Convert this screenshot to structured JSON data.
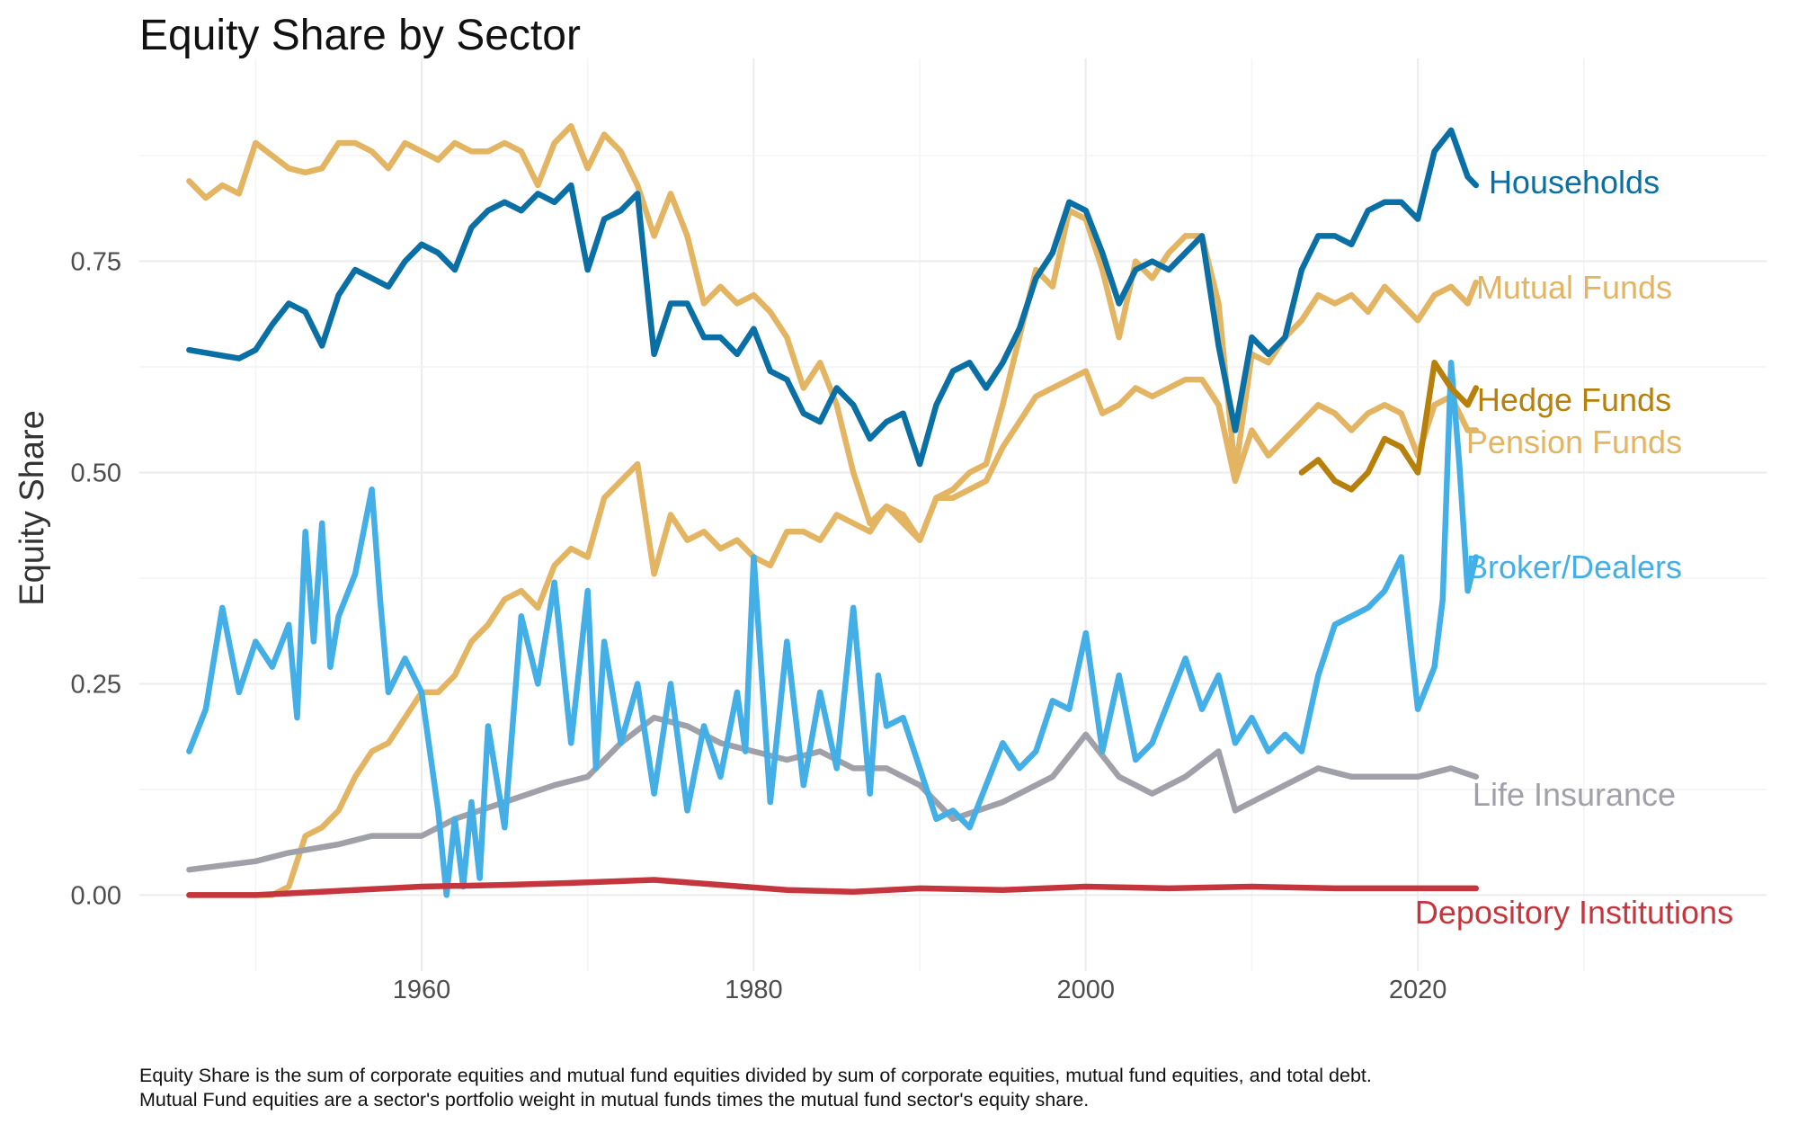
{
  "chart_data": {
    "type": "line",
    "title": "Equity Share by Sector",
    "xlabel": "",
    "ylabel": "Equity Share",
    "xlim": [
      1943,
      2041
    ],
    "ylim": [
      -0.09,
      0.99
    ],
    "x_ticks": [
      1960,
      1980,
      2000,
      2020
    ],
    "y_ticks": [
      0.0,
      0.25,
      0.5,
      0.75
    ],
    "y_tick_labels": [
      "0.00",
      "0.25",
      "0.50",
      "0.75"
    ],
    "grid": true,
    "legend": "direct labels at right",
    "notes": [
      "Equity Share is the sum of corporate equities and mutual fund equities divided by sum of corporate equities, mutual fund equities, and total debt.",
      "Mutual Fund equities are a sector's portfolio weight in mutual funds times the mutual fund sector's equity share."
    ],
    "series": [
      {
        "name": "Households",
        "color": "#0a6fa5",
        "x": [
          1946,
          1949,
          1950,
          1951,
          1952,
          1953,
          1954,
          1955,
          1956,
          1957,
          1958,
          1959,
          1960,
          1961,
          1962,
          1963,
          1964,
          1965,
          1966,
          1967,
          1968,
          1969,
          1970,
          1971,
          1972,
          1973,
          1974,
          1975,
          1976,
          1977,
          1978,
          1979,
          1980,
          1981,
          1982,
          1983,
          1984,
          1985,
          1986,
          1987,
          1988,
          1989,
          1990,
          1991,
          1992,
          1993,
          1994,
          1995,
          1996,
          1997,
          1998,
          1999,
          2000,
          2001,
          2002,
          2003,
          2004,
          2005,
          2006,
          2007,
          2008,
          2009,
          2010,
          2011,
          2012,
          2013,
          2014,
          2015,
          2016,
          2017,
          2018,
          2019,
          2020,
          2021,
          2022,
          2023,
          2023.5
        ],
        "y": [
          0.645,
          0.635,
          0.645,
          0.675,
          0.7,
          0.69,
          0.65,
          0.71,
          0.74,
          0.73,
          0.72,
          0.75,
          0.77,
          0.76,
          0.74,
          0.79,
          0.81,
          0.82,
          0.81,
          0.83,
          0.82,
          0.84,
          0.74,
          0.8,
          0.81,
          0.83,
          0.64,
          0.7,
          0.7,
          0.66,
          0.66,
          0.64,
          0.67,
          0.62,
          0.61,
          0.57,
          0.56,
          0.6,
          0.58,
          0.54,
          0.56,
          0.57,
          0.51,
          0.58,
          0.62,
          0.63,
          0.6,
          0.63,
          0.67,
          0.73,
          0.76,
          0.82,
          0.81,
          0.76,
          0.7,
          0.74,
          0.75,
          0.74,
          0.76,
          0.78,
          0.65,
          0.55,
          0.66,
          0.64,
          0.66,
          0.74,
          0.78,
          0.78,
          0.77,
          0.81,
          0.82,
          0.82,
          0.8,
          0.88,
          0.905,
          0.85,
          0.84
        ]
      },
      {
        "name": "Mutual Funds",
        "color": "#e3b462",
        "x": [
          1946,
          1947,
          1948,
          1949,
          1950,
          1951,
          1952,
          1953,
          1954,
          1955,
          1956,
          1957,
          1958,
          1959,
          1960,
          1961,
          1962,
          1963,
          1964,
          1965,
          1966,
          1967,
          1968,
          1969,
          1970,
          1971,
          1972,
          1973,
          1974,
          1975,
          1976,
          1977,
          1978,
          1979,
          1980,
          1981,
          1982,
          1983,
          1984,
          1985,
          1986,
          1987,
          1988,
          1989,
          1990,
          1991,
          1992,
          1993,
          1994,
          1995,
          1996,
          1997,
          1998,
          1999,
          2000,
          2001,
          2002,
          2003,
          2004,
          2005,
          2006,
          2007,
          2008,
          2009,
          2010,
          2011,
          2012,
          2013,
          2014,
          2015,
          2016,
          2017,
          2018,
          2019,
          2020,
          2021,
          2022,
          2023,
          2023.5
        ],
        "y": [
          0.845,
          0.825,
          0.84,
          0.83,
          0.89,
          0.875,
          0.86,
          0.855,
          0.86,
          0.89,
          0.89,
          0.88,
          0.86,
          0.89,
          0.88,
          0.87,
          0.89,
          0.88,
          0.88,
          0.89,
          0.88,
          0.84,
          0.89,
          0.91,
          0.86,
          0.9,
          0.88,
          0.84,
          0.78,
          0.83,
          0.78,
          0.7,
          0.72,
          0.7,
          0.71,
          0.69,
          0.66,
          0.6,
          0.63,
          0.58,
          0.5,
          0.44,
          0.46,
          0.45,
          0.42,
          0.47,
          0.48,
          0.5,
          0.51,
          0.58,
          0.66,
          0.74,
          0.72,
          0.81,
          0.8,
          0.74,
          0.66,
          0.75,
          0.73,
          0.76,
          0.78,
          0.78,
          0.7,
          0.5,
          0.64,
          0.63,
          0.66,
          0.68,
          0.71,
          0.7,
          0.71,
          0.69,
          0.72,
          0.7,
          0.68,
          0.71,
          0.72,
          0.7,
          0.725
        ]
      },
      {
        "name": "Hedge Funds",
        "color": "#b7800b",
        "x": [
          2013,
          2014,
          2015,
          2016,
          2017,
          2018,
          2019,
          2020,
          2021,
          2022,
          2023,
          2023.5
        ],
        "y": [
          0.5,
          0.515,
          0.49,
          0.48,
          0.5,
          0.54,
          0.53,
          0.5,
          0.63,
          0.6,
          0.58,
          0.6
        ]
      },
      {
        "name": "Pension Funds",
        "color": "#e3b462",
        "x": [
          1946,
          1948,
          1950,
          1951,
          1952,
          1953,
          1954,
          1955,
          1956,
          1957,
          1958,
          1959,
          1960,
          1961,
          1962,
          1963,
          1964,
          1965,
          1966,
          1967,
          1968,
          1969,
          1970,
          1971,
          1972,
          1973,
          1974,
          1975,
          1976,
          1977,
          1978,
          1979,
          1980,
          1981,
          1982,
          1983,
          1984,
          1985,
          1986,
          1987,
          1988,
          1989,
          1990,
          1991,
          1992,
          1993,
          1994,
          1995,
          1996,
          1997,
          1998,
          1999,
          2000,
          2001,
          2002,
          2003,
          2004,
          2005,
          2006,
          2007,
          2008,
          2009,
          2010,
          2011,
          2012,
          2013,
          2014,
          2015,
          2016,
          2017,
          2018,
          2019,
          2020,
          2021,
          2022,
          2023,
          2023.5
        ],
        "y": [
          0.0,
          0.0,
          0.0,
          0.0,
          0.01,
          0.07,
          0.08,
          0.1,
          0.14,
          0.17,
          0.18,
          0.21,
          0.24,
          0.24,
          0.26,
          0.3,
          0.32,
          0.35,
          0.36,
          0.34,
          0.39,
          0.41,
          0.4,
          0.47,
          0.49,
          0.51,
          0.38,
          0.45,
          0.42,
          0.43,
          0.41,
          0.42,
          0.4,
          0.39,
          0.43,
          0.43,
          0.42,
          0.45,
          0.44,
          0.43,
          0.46,
          0.44,
          0.42,
          0.47,
          0.47,
          0.48,
          0.49,
          0.53,
          0.56,
          0.59,
          0.6,
          0.61,
          0.62,
          0.57,
          0.58,
          0.6,
          0.59,
          0.6,
          0.61,
          0.61,
          0.58,
          0.49,
          0.55,
          0.52,
          0.54,
          0.56,
          0.58,
          0.57,
          0.55,
          0.57,
          0.58,
          0.57,
          0.52,
          0.58,
          0.59,
          0.55,
          0.55
        ]
      },
      {
        "name": "Broker/Dealers",
        "color": "#43afe6",
        "x": [
          1946,
          1947,
          1948,
          1949,
          1950,
          1951,
          1952,
          1952.5,
          1953,
          1953.5,
          1954,
          1954.5,
          1955,
          1956,
          1957,
          1957.5,
          1958,
          1959,
          1960,
          1961,
          1961.5,
          1962,
          1962.5,
          1963,
          1963.5,
          1964,
          1965,
          1966,
          1967,
          1968,
          1969,
          1970,
          1970.5,
          1971,
          1972,
          1973,
          1974,
          1975,
          1976,
          1977,
          1978,
          1979,
          1979.5,
          1980,
          1981,
          1982,
          1983,
          1984,
          1985,
          1986,
          1987,
          1987.5,
          1988,
          1989,
          1990,
          1991,
          1992,
          1993,
          1994,
          1995,
          1996,
          1997,
          1998,
          1999,
          2000,
          2001,
          2002,
          2003,
          2004,
          2005,
          2006,
          2007,
          2008,
          2009,
          2010,
          2011,
          2012,
          2013,
          2014,
          2015,
          2016,
          2017,
          2018,
          2019,
          2020,
          2021,
          2021.5,
          2022,
          2022.5,
          2023,
          2023.5
        ],
        "y": [
          0.17,
          0.22,
          0.34,
          0.24,
          0.3,
          0.27,
          0.32,
          0.21,
          0.43,
          0.3,
          0.44,
          0.27,
          0.33,
          0.38,
          0.48,
          0.35,
          0.24,
          0.28,
          0.24,
          0.1,
          0.0,
          0.09,
          0.01,
          0.11,
          0.02,
          0.2,
          0.08,
          0.33,
          0.25,
          0.37,
          0.18,
          0.36,
          0.15,
          0.3,
          0.18,
          0.25,
          0.12,
          0.25,
          0.1,
          0.2,
          0.14,
          0.24,
          0.17,
          0.4,
          0.11,
          0.3,
          0.13,
          0.24,
          0.15,
          0.34,
          0.12,
          0.26,
          0.2,
          0.21,
          0.15,
          0.09,
          0.1,
          0.08,
          0.13,
          0.18,
          0.15,
          0.17,
          0.23,
          0.22,
          0.31,
          0.17,
          0.26,
          0.16,
          0.18,
          0.23,
          0.28,
          0.22,
          0.26,
          0.18,
          0.21,
          0.17,
          0.19,
          0.17,
          0.26,
          0.32,
          0.33,
          0.34,
          0.36,
          0.4,
          0.22,
          0.27,
          0.35,
          0.63,
          0.51,
          0.36,
          0.4
        ]
      },
      {
        "name": "Life Insurance",
        "color": "#a0a0a8",
        "x": [
          1946,
          1950,
          1952,
          1955,
          1957,
          1960,
          1962,
          1965,
          1968,
          1970,
          1972,
          1974,
          1976,
          1978,
          1980,
          1982,
          1984,
          1986,
          1988,
          1990,
          1992,
          1995,
          1998,
          2000,
          2002,
          2004,
          2006,
          2008,
          2009,
          2010,
          2012,
          2014,
          2016,
          2018,
          2020,
          2022,
          2023.5
        ],
        "y": [
          0.03,
          0.04,
          0.05,
          0.06,
          0.07,
          0.07,
          0.09,
          0.11,
          0.13,
          0.14,
          0.18,
          0.21,
          0.2,
          0.18,
          0.17,
          0.16,
          0.17,
          0.15,
          0.15,
          0.13,
          0.09,
          0.11,
          0.14,
          0.19,
          0.14,
          0.12,
          0.14,
          0.17,
          0.1,
          0.11,
          0.13,
          0.15,
          0.14,
          0.14,
          0.14,
          0.15,
          0.14
        ]
      },
      {
        "name": "Depository Institutions",
        "color": "#c5353d",
        "x": [
          1946,
          1950,
          1955,
          1960,
          1965,
          1970,
          1974,
          1978,
          1982,
          1986,
          1990,
          1995,
          2000,
          2005,
          2010,
          2015,
          2020,
          2023.5
        ],
        "y": [
          0.0,
          0.0,
          0.005,
          0.01,
          0.012,
          0.015,
          0.018,
          0.012,
          0.006,
          0.004,
          0.008,
          0.006,
          0.01,
          0.008,
          0.01,
          0.008,
          0.008,
          0.008
        ]
      }
    ]
  }
}
